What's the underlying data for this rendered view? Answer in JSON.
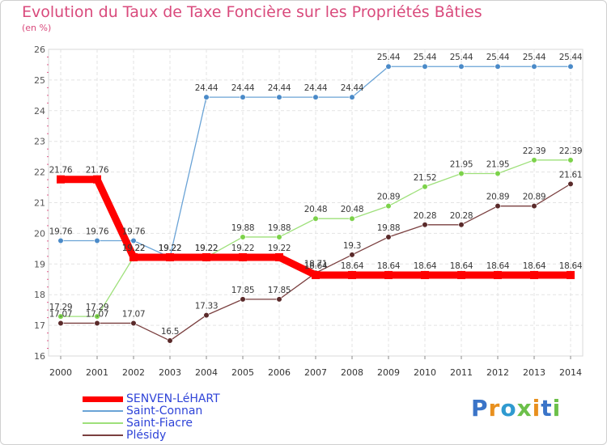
{
  "title": "Evolution du Taux de Taxe Foncière sur les Propriétés Bâties",
  "unit": "(en %)",
  "logo": {
    "text": "Proxiti",
    "colors": [
      "#3a74c8",
      "#e8901e",
      "#2f9ad0",
      "#6cc04a",
      "#e8901e",
      "#3a74c8",
      "#6cc04a"
    ]
  },
  "chart_data": {
    "type": "line",
    "title": "Evolution du Taux de Taxe Foncière sur les Propriétés Bâties",
    "ylabel": "(en %)",
    "xlabel": "",
    "x": [
      "2000",
      "2001",
      "2002",
      "2003",
      "2004",
      "2005",
      "2006",
      "2007",
      "2008",
      "2009",
      "2010",
      "2011",
      "2012",
      "2013",
      "2014"
    ],
    "ylim": [
      16,
      26
    ],
    "yticks": [
      "16",
      "17",
      "18",
      "19",
      "20",
      "21",
      "22",
      "23",
      "24",
      "25",
      "26"
    ],
    "grid": true,
    "legend": "bottom-left",
    "series": [
      {
        "name": "SENVEN-LéHART",
        "color": "#ff0000",
        "values": [
          21.76,
          21.76,
          19.22,
          19.22,
          19.22,
          19.22,
          19.22,
          18.64,
          18.64,
          18.64,
          18.64,
          18.64,
          18.64,
          18.64,
          18.64
        ],
        "labels": [
          "21.76",
          "21.76",
          "19.22",
          "19.22",
          "19.22",
          "19.22",
          "19.22",
          "18.64",
          "18.64",
          "18.64",
          "18.64",
          "18.64",
          "18.64",
          "18.64",
          "18.64"
        ]
      },
      {
        "name": "Saint-Connan",
        "color": "#6aa3d6",
        "values": [
          19.76,
          19.76,
          19.76,
          19.22,
          24.44,
          24.44,
          24.44,
          24.44,
          24.44,
          25.44,
          25.44,
          25.44,
          25.44,
          25.44,
          25.44
        ],
        "labels": [
          "19.76",
          "19.76",
          "19.76",
          "19.22",
          "24.44",
          "24.44",
          "24.44",
          "24.44",
          "24.44",
          "25.44",
          "25.44",
          "25.44",
          "25.44",
          "25.44",
          "25.44"
        ]
      },
      {
        "name": "Saint-Fiacre",
        "color": "#9ee07a",
        "values": [
          17.29,
          17.29,
          19.22,
          19.22,
          19.22,
          19.88,
          19.88,
          20.48,
          20.48,
          20.89,
          21.52,
          21.95,
          21.95,
          22.39,
          22.39
        ],
        "labels": [
          "17.29",
          "17.29",
          "19.22",
          "19.22",
          "19.22",
          "19.88",
          "19.88",
          "20.48",
          "20.48",
          "20.89",
          "21.52",
          "21.95",
          "21.95",
          "22.39",
          "22.39"
        ]
      },
      {
        "name": "Plésidy",
        "color": "#7a3f3f",
        "values": [
          17.07,
          17.07,
          17.07,
          16.5,
          17.33,
          17.85,
          17.85,
          18.71,
          19.3,
          19.88,
          20.28,
          20.28,
          20.89,
          20.89,
          21.61
        ],
        "labels": [
          "17.07",
          "17.07",
          "17.07",
          "16.5",
          "17.33",
          "17.85",
          "17.85",
          "18.71",
          "19.3",
          "19.88",
          "20.28",
          "20.28",
          "20.89",
          "20.89",
          "21.61"
        ]
      }
    ]
  }
}
